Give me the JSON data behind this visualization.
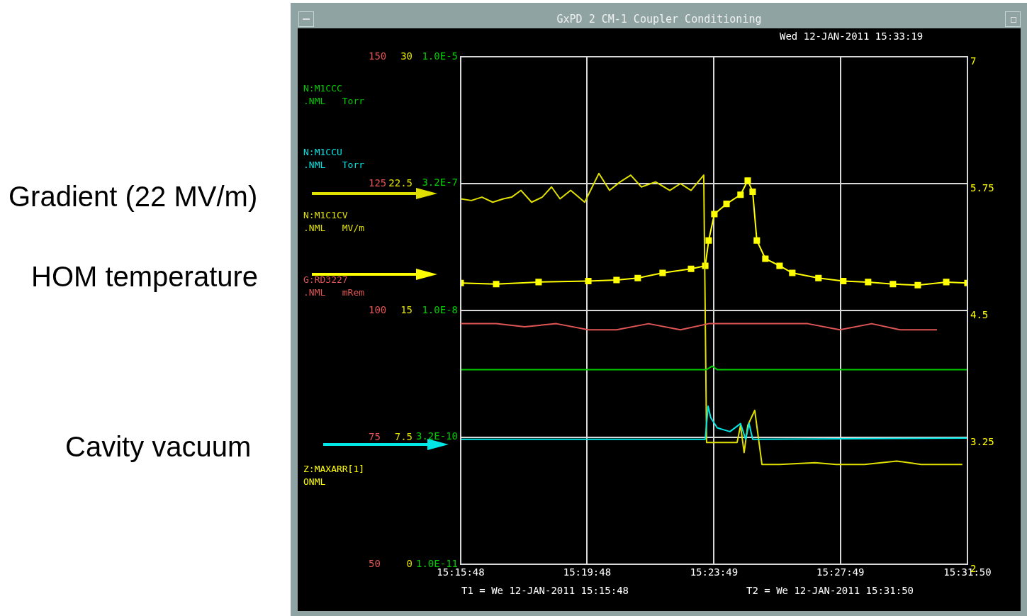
{
  "chart_data": [
    {
      "type": "line",
      "title": "GxPD 2 CM-1 Coupler Conditioning",
      "annotations": [
        "Wed 12-JAN-2011 15:33:19",
        "T1 = We 12-JAN-2011 15:15:48",
        "T2 = We 12-JAN-2011 15:31:50",
        "Gradient (22 MV/m)",
        "HOM temperature",
        "Cavity vacuum"
      ],
      "xlim": [
        15.2633,
        15.5306
      ],
      "xticks": [
        {
          "value": 15.2633,
          "label": "15:15:48"
        },
        {
          "value": 15.33,
          "label": "15:19:48"
        },
        {
          "value": 15.3969,
          "label": "15:23:49"
        },
        {
          "value": 15.4636,
          "label": "15:27:49"
        },
        {
          "value": 15.5306,
          "label": "15:31:50"
        }
      ],
      "ylim": [
        1e-11,
        1e-05
      ],
      "yticks": [
        {
          "value": 1e-11,
          "label": "1.0E-11"
        },
        {
          "value": 3.2e-10,
          "label": "3.2E-10"
        },
        {
          "value": 1e-08,
          "label": "1.0E-8"
        },
        {
          "value": 3.2e-07,
          "label": "3.2E-7"
        },
        {
          "value": 1e-05,
          "label": "1.0E-5"
        }
      ],
      "log": "y",
      "y2lim": [
        2,
        7
      ],
      "y2ticks": [
        2,
        3.25,
        4.5,
        5.75,
        7
      ],
      "y3lim": [
        0,
        30
      ],
      "y3ticks": [
        0,
        7.5,
        15,
        22.5,
        30
      ],
      "grid": true,
      "legend": "left",
      "marker": "none",
      "series": [
        {
          "name": "N:M1CCC .NML Torr",
          "color": "#00cc00",
          "axis": "y",
          "x": [
            15.2633,
            15.393,
            15.396,
            15.3986,
            15.5306
          ],
          "values": [
            2e-09,
            2e-09,
            2.2e-09,
            2e-09,
            2e-09
          ]
        },
        {
          "name": "N:M1CCU .NML Torr",
          "color": "#00e5e5",
          "axis": "y",
          "x": [
            15.2633,
            15.3923,
            15.3938,
            15.3952,
            15.3986,
            15.4053,
            15.4109,
            15.4136,
            15.4154,
            15.4173,
            15.5306
          ],
          "values": [
            3e-10,
            3e-10,
            7.4e-10,
            5.4e-10,
            4.1e-10,
            3.7e-10,
            4.6e-10,
            3e-10,
            4.6e-10,
            3e-10,
            3.1e-10
          ]
        },
        {
          "name": "N:M1C1CV .NML MV/m",
          "color": "#e0e000",
          "axis": "y3",
          "x": [
            15.2633,
            15.2689,
            15.2745,
            15.2802,
            15.2858,
            15.2902,
            15.2951,
            15.3007,
            15.3063,
            15.3112,
            15.3157,
            15.3213,
            15.3287,
            15.3362,
            15.3418,
            15.3474,
            15.353,
            15.3586,
            15.3661,
            15.3736,
            15.3792,
            15.3848,
            15.3915,
            15.393,
            15.396,
            15.4091,
            15.4109,
            15.4128,
            15.4147,
            15.4184,
            15.4222,
            15.4315,
            15.4502,
            15.4614,
            15.4763,
            15.4932,
            15.5062,
            15.5279
          ],
          "values": [
            21.6,
            21.5,
            21.7,
            21.4,
            21.6,
            21.7,
            22.1,
            21.4,
            21.7,
            22.3,
            21.6,
            22.1,
            21.4,
            23.1,
            22.1,
            22.6,
            23.0,
            22.3,
            22.6,
            22.1,
            22.5,
            22.1,
            23.0,
            7.2,
            7.2,
            7.2,
            8.2,
            6.6,
            8.2,
            9.1,
            5.9,
            5.9,
            6.0,
            5.9,
            5.9,
            6.1,
            5.9,
            5.9
          ]
        },
        {
          "name": "Z:MAXARR[1] ONML",
          "color": "#ffff00",
          "axis": "y2",
          "marker": "square",
          "x": [
            15.2633,
            15.282,
            15.3044,
            15.3306,
            15.3455,
            15.3567,
            15.3698,
            15.3848,
            15.3923,
            15.3941,
            15.3971,
            15.4035,
            15.4109,
            15.4147,
            15.4173,
            15.4195,
            15.424,
            15.4315,
            15.4382,
            15.452,
            15.4651,
            15.4782,
            15.4913,
            15.5044,
            15.5194,
            15.5306
          ],
          "values": [
            4.77,
            4.76,
            4.78,
            4.79,
            4.8,
            4.82,
            4.87,
            4.91,
            4.94,
            5.19,
            5.45,
            5.55,
            5.64,
            5.78,
            5.67,
            5.19,
            5.01,
            4.94,
            4.87,
            4.82,
            4.79,
            4.78,
            4.76,
            4.75,
            4.78,
            4.77
          ]
        }
      ]
    },
    {
      "type": "line",
      "xlim": [
        15.2633,
        15.5306
      ],
      "ylim": [
        50,
        150
      ],
      "yticks": [
        50,
        75,
        100,
        125,
        150
      ],
      "tick_labels": "y",
      "legend": "left",
      "series": [
        {
          "name": "G:RD3227 .NML mRem",
          "color": "#e05555",
          "x": [
            15.2633,
            15.282,
            15.297,
            15.3138,
            15.3306,
            15.3455,
            15.3624,
            15.3792,
            15.3941,
            15.4464,
            15.4633,
            15.4801,
            15.495,
            15.5145
          ],
          "values": [
            97.4,
            97.4,
            96.8,
            97.4,
            96.2,
            96.2,
            97.4,
            96.2,
            97.4,
            97.4,
            96.2,
            97.4,
            96.2,
            96.2
          ]
        }
      ]
    }
  ]
}
